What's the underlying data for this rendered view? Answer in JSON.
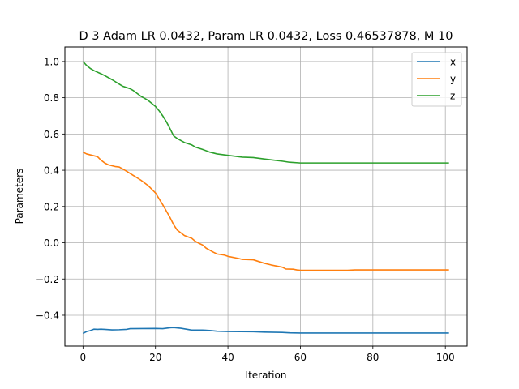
{
  "chart_data": {
    "type": "line",
    "title": "D 3 Adam LR 0.0432, Param LR 0.0432, Loss 0.46537878, M 10",
    "xlabel": "Iteration",
    "ylabel": "Parameters",
    "xlim": [
      -5,
      106
    ],
    "ylim": [
      -0.57,
      1.08
    ],
    "xticks": [
      0,
      20,
      40,
      60,
      80,
      100
    ],
    "xtick_labels": [
      "0",
      "20",
      "40",
      "60",
      "80",
      "100"
    ],
    "yticks": [
      -0.4,
      -0.2,
      0.0,
      0.2,
      0.4,
      0.6,
      0.8,
      1.0
    ],
    "ytick_labels": [
      "−0.4",
      "−0.2",
      "0.0",
      "0.2",
      "0.4",
      "0.6",
      "0.8",
      "1.0"
    ],
    "grid": true,
    "legend": "top-right",
    "series": [
      {
        "name": "x",
        "color": "#1f77b4",
        "points": [
          [
            0,
            -0.5
          ],
          [
            1,
            -0.49
          ],
          [
            2,
            -0.485
          ],
          [
            3,
            -0.477
          ],
          [
            4,
            -0.478
          ],
          [
            5,
            -0.477
          ],
          [
            8,
            -0.481
          ],
          [
            10,
            -0.48
          ],
          [
            12,
            -0.478
          ],
          [
            13,
            -0.474
          ],
          [
            20,
            -0.473
          ],
          [
            22,
            -0.474
          ],
          [
            24,
            -0.469
          ],
          [
            25,
            -0.468
          ],
          [
            27,
            -0.472
          ],
          [
            30,
            -0.482
          ],
          [
            33,
            -0.482
          ],
          [
            35,
            -0.484
          ],
          [
            37,
            -0.488
          ],
          [
            40,
            -0.49
          ],
          [
            47,
            -0.491
          ],
          [
            50,
            -0.493
          ],
          [
            55,
            -0.495
          ],
          [
            57,
            -0.497
          ],
          [
            60,
            -0.498
          ],
          [
            101,
            -0.498
          ]
        ]
      },
      {
        "name": "y",
        "color": "#ff7f0e",
        "points": [
          [
            0,
            0.5
          ],
          [
            1,
            0.49
          ],
          [
            2,
            0.485
          ],
          [
            3,
            0.48
          ],
          [
            4,
            0.475
          ],
          [
            5,
            0.455
          ],
          [
            6,
            0.44
          ],
          [
            7,
            0.43
          ],
          [
            8,
            0.425
          ],
          [
            9,
            0.42
          ],
          [
            10,
            0.418
          ],
          [
            12,
            0.395
          ],
          [
            14,
            0.37
          ],
          [
            16,
            0.345
          ],
          [
            18,
            0.315
          ],
          [
            20,
            0.275
          ],
          [
            22,
            0.21
          ],
          [
            24,
            0.14
          ],
          [
            25,
            0.1
          ],
          [
            26,
            0.07
          ],
          [
            28,
            0.04
          ],
          [
            30,
            0.025
          ],
          [
            31,
            0.008
          ],
          [
            32,
            -0.003
          ],
          [
            33,
            -0.012
          ],
          [
            34,
            -0.03
          ],
          [
            36,
            -0.052
          ],
          [
            37,
            -0.062
          ],
          [
            39,
            -0.068
          ],
          [
            40,
            -0.075
          ],
          [
            43,
            -0.087
          ],
          [
            44,
            -0.092
          ],
          [
            47,
            -0.094
          ],
          [
            50,
            -0.113
          ],
          [
            52,
            -0.123
          ],
          [
            55,
            -0.135
          ],
          [
            56,
            -0.145
          ],
          [
            58,
            -0.146
          ],
          [
            59,
            -0.15
          ],
          [
            60,
            -0.152
          ],
          [
            73,
            -0.152
          ],
          [
            75,
            -0.15
          ],
          [
            101,
            -0.15
          ]
        ]
      },
      {
        "name": "z",
        "color": "#2ca02c",
        "points": [
          [
            0,
            1.0
          ],
          [
            1,
            0.978
          ],
          [
            2,
            0.962
          ],
          [
            3,
            0.95
          ],
          [
            5,
            0.932
          ],
          [
            6,
            0.922
          ],
          [
            8,
            0.9
          ],
          [
            10,
            0.875
          ],
          [
            11,
            0.863
          ],
          [
            13,
            0.85
          ],
          [
            14,
            0.838
          ],
          [
            16,
            0.808
          ],
          [
            18,
            0.785
          ],
          [
            20,
            0.752
          ],
          [
            21,
            0.728
          ],
          [
            22,
            0.7
          ],
          [
            23,
            0.668
          ],
          [
            24,
            0.63
          ],
          [
            25,
            0.59
          ],
          [
            26,
            0.575
          ],
          [
            28,
            0.553
          ],
          [
            30,
            0.54
          ],
          [
            31,
            0.528
          ],
          [
            33,
            0.515
          ],
          [
            35,
            0.5
          ],
          [
            37,
            0.49
          ],
          [
            40,
            0.482
          ],
          [
            44,
            0.472
          ],
          [
            47,
            0.47
          ],
          [
            50,
            0.462
          ],
          [
            53,
            0.455
          ],
          [
            55,
            0.45
          ],
          [
            57,
            0.444
          ],
          [
            60,
            0.44
          ],
          [
            101,
            0.44
          ]
        ]
      }
    ]
  }
}
